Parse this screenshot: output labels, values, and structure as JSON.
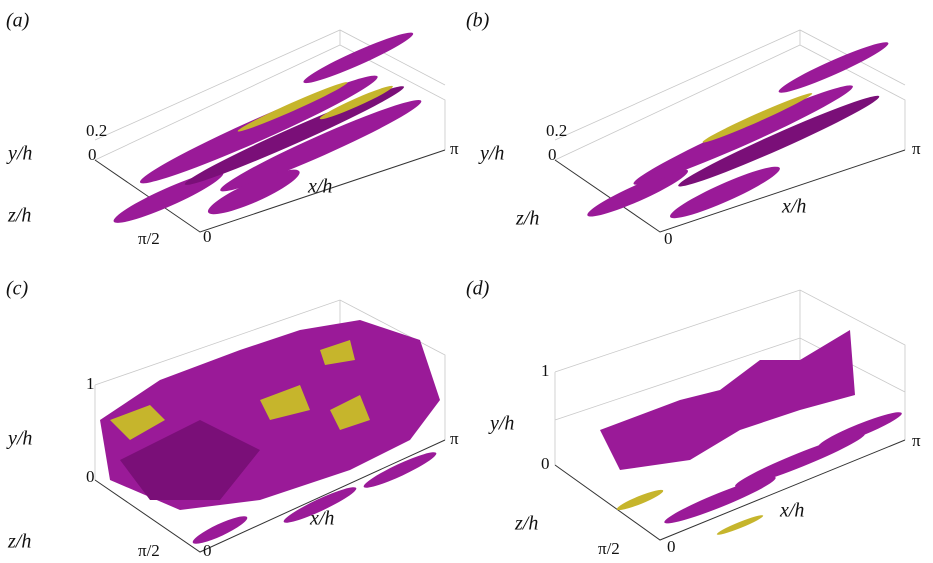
{
  "panels": [
    {
      "label": "(a)",
      "y_axis": "y/h",
      "z_axis": "z/h",
      "x_axis": "x/h",
      "y_ticks": [
        "0.2",
        "0"
      ],
      "z_ticks": [
        "π/2",
        "0"
      ],
      "x_ticks": [
        "π"
      ]
    },
    {
      "label": "(b)",
      "y_axis": "y/h",
      "z_axis": "z/h",
      "x_axis": "x/h",
      "y_ticks": [
        "0.2",
        "0"
      ],
      "z_ticks": [
        "0"
      ],
      "x_ticks": [
        "π"
      ]
    },
    {
      "label": "(c)",
      "y_axis": "y/h",
      "z_axis": "z/h",
      "x_axis": "x/h",
      "y_ticks": [
        "1",
        "0"
      ],
      "z_ticks": [
        "π/2",
        "0"
      ],
      "x_ticks": [
        "π"
      ]
    },
    {
      "label": "(d)",
      "y_axis": "y/h",
      "z_axis": "z/h",
      "x_axis": "x/h",
      "y_ticks": [
        "1",
        "0"
      ],
      "z_ticks": [
        "π/2",
        "0"
      ],
      "x_ticks": [
        "π"
      ]
    }
  ]
}
